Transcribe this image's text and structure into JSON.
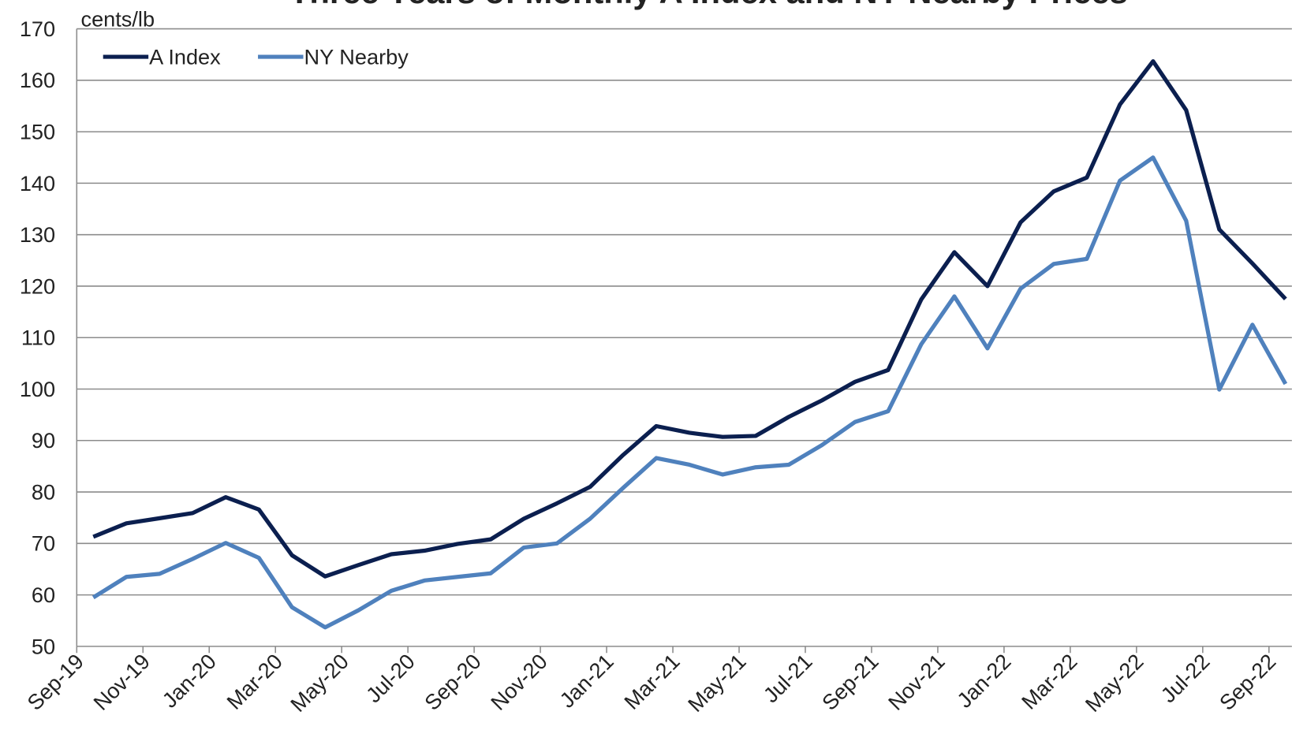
{
  "chart_data": {
    "type": "line",
    "title": "Three Years of Monthly A Index and NY Nearby Prices",
    "y_label": "cents/lb",
    "categories": [
      "Sep-19",
      null,
      "Nov-19",
      null,
      "Jan-20",
      null,
      "Mar-20",
      null,
      "May-20",
      null,
      "Jul-20",
      null,
      "Sep-20",
      null,
      "Nov-20",
      null,
      "Jan-21",
      null,
      "Mar-21",
      null,
      "May-21",
      null,
      "Jul-21",
      null,
      "Sep-21",
      null,
      "Nov-21",
      null,
      "Jan-22",
      null,
      "Mar-22",
      null,
      "May-22",
      null,
      "Jul-22",
      null,
      "Sep-22"
    ],
    "series": [
      {
        "name": "A Index",
        "color": "#0b1f4f",
        "values": [
          71.3,
          73.9,
          74.9,
          75.9,
          79.0,
          76.6,
          67.7,
          63.6,
          65.8,
          67.9,
          68.6,
          69.9,
          70.8,
          74.8,
          77.8,
          81.0,
          87.2,
          92.8,
          91.5,
          90.7,
          90.9,
          94.6,
          97.8,
          101.4,
          103.7,
          117.4,
          126.6,
          120.0,
          132.4,
          138.4,
          141.1,
          155.3,
          163.7,
          154.2,
          131.0,
          124.4,
          117.5
        ]
      },
      {
        "name": "NY Nearby",
        "color": "#4f81bd",
        "values": [
          59.5,
          63.5,
          64.1,
          67.0,
          70.1,
          67.2,
          57.6,
          53.7,
          57.0,
          60.8,
          62.8,
          63.5,
          64.2,
          69.2,
          70.0,
          74.8,
          80.8,
          86.6,
          85.3,
          83.4,
          84.8,
          85.3,
          89.1,
          93.6,
          95.7,
          108.7,
          118.0,
          107.9,
          119.5,
          124.3,
          125.3,
          140.5,
          145.0,
          132.7,
          99.9,
          112.5,
          101.0
        ]
      }
    ],
    "ylim": [
      50,
      170
    ],
    "yticks": [
      50,
      60,
      70,
      80,
      90,
      100,
      110,
      120,
      130,
      140,
      150,
      160,
      170
    ],
    "grid": true,
    "legend": "top-left"
  }
}
